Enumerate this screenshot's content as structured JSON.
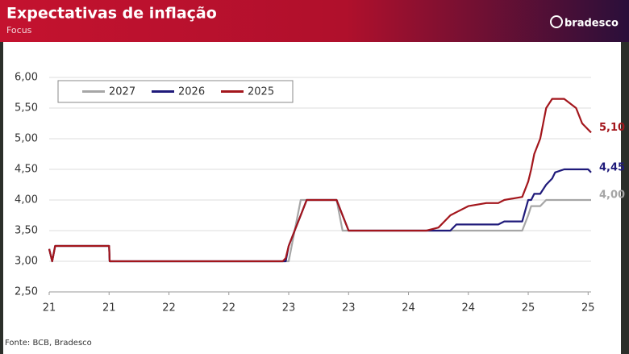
{
  "header": {
    "title": "Expectativas de inflação",
    "subtitle": "Focus",
    "logo": "bradesco"
  },
  "source": "Fonte: BCB, Bradesco",
  "chart_data": {
    "type": "line",
    "x": [
      0,
      0.05,
      0.1,
      1.0,
      1.01,
      3.9,
      3.95,
      4.0,
      4.1,
      4.2,
      4.3,
      4.8,
      4.9,
      5.0,
      6.3,
      6.5,
      6.7,
      6.8,
      7.0,
      7.3,
      7.5,
      7.6,
      7.9,
      8.0,
      8.05,
      8.1,
      8.2,
      8.3,
      8.4,
      8.45,
      8.6,
      8.8,
      8.9,
      9.0,
      9.05
    ],
    "series": [
      {
        "name": "2027",
        "color": "#a6a6a6",
        "last_label": "4,00",
        "values": [
          3.2,
          3.0,
          3.25,
          3.25,
          3.0,
          3.0,
          3.0,
          3.0,
          3.5,
          4.0,
          4.0,
          4.0,
          3.5,
          3.5,
          3.5,
          3.5,
          3.5,
          3.5,
          3.5,
          3.5,
          3.5,
          3.5,
          3.5,
          3.75,
          3.9,
          3.9,
          3.9,
          4.0,
          4.0,
          4.0,
          4.0,
          4.0,
          4.0,
          4.0,
          4.0
        ]
      },
      {
        "name": "2026",
        "color": "#1f1a7a",
        "last_label": "4,45",
        "values": [
          3.2,
          3.0,
          3.25,
          3.25,
          3.0,
          3.0,
          3.0,
          3.25,
          3.5,
          3.75,
          4.0,
          4.0,
          3.75,
          3.5,
          3.5,
          3.5,
          3.5,
          3.6,
          3.6,
          3.6,
          3.6,
          3.65,
          3.65,
          4.0,
          4.0,
          4.1,
          4.1,
          4.25,
          4.35,
          4.45,
          4.5,
          4.5,
          4.5,
          4.5,
          4.45
        ]
      },
      {
        "name": "2025",
        "color": "#a3161c",
        "last_label": "5,10",
        "values": [
          3.2,
          3.0,
          3.25,
          3.25,
          3.0,
          3.0,
          3.05,
          3.25,
          3.5,
          3.75,
          4.0,
          4.0,
          3.75,
          3.5,
          3.5,
          3.55,
          3.75,
          3.8,
          3.9,
          3.95,
          3.95,
          4.0,
          4.05,
          4.3,
          4.5,
          4.75,
          5.0,
          5.5,
          5.65,
          5.65,
          5.65,
          5.5,
          5.25,
          5.15,
          5.1
        ]
      }
    ],
    "xlim": [
      0,
      9.05
    ],
    "xticks": [
      {
        "value": 0,
        "label": "21"
      },
      {
        "value": 1,
        "label": "21"
      },
      {
        "value": 2,
        "label": "22"
      },
      {
        "value": 3,
        "label": "22"
      },
      {
        "value": 4,
        "label": "23"
      },
      {
        "value": 5,
        "label": "23"
      },
      {
        "value": 6,
        "label": "24"
      },
      {
        "value": 7,
        "label": "24"
      },
      {
        "value": 8,
        "label": "25"
      },
      {
        "value": 9,
        "label": "25"
      }
    ],
    "ylim": [
      2.5,
      6.0
    ],
    "yticks": [
      {
        "value": 2.5,
        "label": "2,50"
      },
      {
        "value": 3.0,
        "label": "3,00"
      },
      {
        "value": 3.5,
        "label": "3,50"
      },
      {
        "value": 4.0,
        "label": "4,00"
      },
      {
        "value": 4.5,
        "label": "4,50"
      },
      {
        "value": 5.0,
        "label": "5,00"
      },
      {
        "value": 5.5,
        "label": "5,50"
      },
      {
        "value": 6.0,
        "label": "6,00"
      }
    ],
    "grid": true
  }
}
